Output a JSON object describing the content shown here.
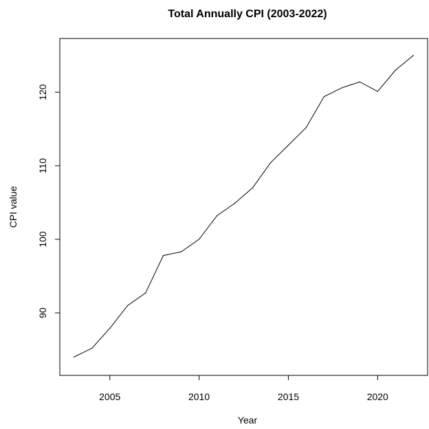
{
  "chart_data": {
    "type": "line",
    "title": "Total Annually CPI (2003-2022)",
    "xlabel": "Year",
    "ylabel": "CPI value",
    "x": [
      2003,
      2004,
      2005,
      2006,
      2007,
      2008,
      2009,
      2010,
      2011,
      2012,
      2013,
      2014,
      2015,
      2016,
      2017,
      2018,
      2019,
      2020,
      2021,
      2022
    ],
    "y": [
      84.0,
      85.2,
      87.9,
      91.0,
      92.7,
      97.8,
      98.3,
      100.0,
      103.2,
      104.9,
      107.0,
      110.4,
      112.8,
      115.2,
      119.4,
      120.6,
      121.4,
      120.1,
      123.0,
      125.0
    ],
    "xlim": [
      2002.2,
      2022.8
    ],
    "ylim": [
      81.5,
      127.3
    ],
    "x_ticks": [
      2005,
      2010,
      2015,
      2020
    ],
    "y_ticks": [
      90,
      100,
      110,
      120
    ],
    "grid": false,
    "line_color": "#000000"
  }
}
